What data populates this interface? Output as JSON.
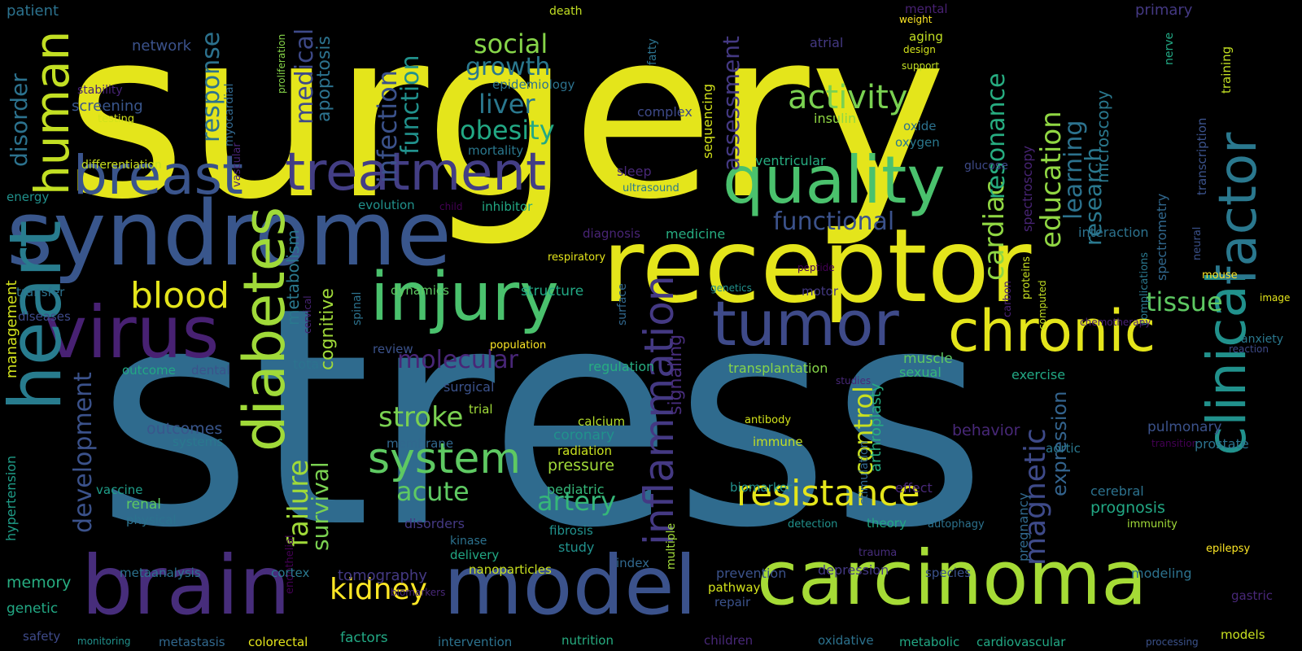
{
  "words": [
    {
      "text": "surgery",
      "color": "#e4e51b",
      "vertical": false
    },
    {
      "text": "stress",
      "color": "#2f6b8e",
      "vertical": false
    },
    {
      "text": "syndrome",
      "color": "#39568c",
      "vertical": false
    },
    {
      "text": "receptor",
      "color": "#e4e51b",
      "vertical": false
    },
    {
      "text": "model",
      "color": "#3b528b",
      "vertical": false
    },
    {
      "text": "carcinoma",
      "color": "#a5db36",
      "vertical": false
    },
    {
      "text": "brain",
      "color": "#472d7b",
      "vertical": false
    },
    {
      "text": "injury",
      "color": "#4ac16d",
      "vertical": false
    },
    {
      "text": "virus",
      "color": "#482173",
      "vertical": false
    },
    {
      "text": "quality",
      "color": "#4ac16d",
      "vertical": false
    },
    {
      "text": "tumor",
      "color": "#3e4a89",
      "vertical": false
    },
    {
      "text": "chronic",
      "color": "#e4e51b",
      "vertical": false
    },
    {
      "text": "breast",
      "color": "#3a548c",
      "vertical": false
    },
    {
      "text": "treatment",
      "color": "#433e85",
      "vertical": false
    },
    {
      "text": "heart",
      "color": "#287c8e",
      "vertical": true
    },
    {
      "text": "human",
      "color": "#c2df23",
      "vertical": true
    },
    {
      "text": "diabetes",
      "color": "#a0da39",
      "vertical": true
    },
    {
      "text": "clinical",
      "color": "#21918c",
      "vertical": true
    },
    {
      "text": "factor",
      "color": "#2a788e",
      "vertical": true
    },
    {
      "text": "inflammation",
      "color": "#443983",
      "vertical": true
    },
    {
      "text": "system",
      "color": "#5ec962",
      "vertical": false
    },
    {
      "text": "resistance",
      "color": "#e4e51b",
      "vertical": false
    },
    {
      "text": "blood",
      "color": "#e4e51b",
      "vertical": false
    },
    {
      "text": "activity",
      "color": "#7ad151",
      "vertical": false
    },
    {
      "text": "kidney",
      "color": "#fde725",
      "vertical": false
    },
    {
      "text": "stroke",
      "color": "#7ad151",
      "vertical": false
    },
    {
      "text": "acute",
      "color": "#5ec962",
      "vertical": false
    },
    {
      "text": "artery",
      "color": "#35b779",
      "vertical": false
    },
    {
      "text": "tissue",
      "color": "#5ec962",
      "vertical": false
    },
    {
      "text": "obesity",
      "color": "#22a884",
      "vertical": false
    },
    {
      "text": "liver",
      "color": "#2a788e",
      "vertical": false
    },
    {
      "text": "social",
      "color": "#86d549",
      "vertical": false
    },
    {
      "text": "growth",
      "color": "#2a788e",
      "vertical": false
    },
    {
      "text": "molecular",
      "color": "#482677",
      "vertical": false
    },
    {
      "text": "functional",
      "color": "#3b528b",
      "vertical": false
    },
    {
      "text": "function",
      "color": "#21918c",
      "vertical": true
    },
    {
      "text": "infection",
      "color": "#3b528b",
      "vertical": true
    },
    {
      "text": "medical",
      "color": "#3e4a89",
      "vertical": true
    },
    {
      "text": "response",
      "color": "#2c728e",
      "vertical": true
    },
    {
      "text": "development",
      "color": "#3b528b",
      "vertical": true
    },
    {
      "text": "failure",
      "color": "#a0da39",
      "vertical": true
    },
    {
      "text": "survival",
      "color": "#7ad151",
      "vertical": true
    },
    {
      "text": "control",
      "color": "#c8e020",
      "vertical": true
    },
    {
      "text": "magnetic",
      "color": "#3e4a89",
      "vertical": true
    },
    {
      "text": "cardiac",
      "color": "#90d743",
      "vertical": true
    },
    {
      "text": "resonance",
      "color": "#27ad81",
      "vertical": true
    },
    {
      "text": "education",
      "color": "#90d743",
      "vertical": true
    },
    {
      "text": "learning",
      "color": "#2c728e",
      "vertical": true
    },
    {
      "text": "research",
      "color": "#2a788e",
      "vertical": true
    },
    {
      "text": "assessment",
      "color": "#443983",
      "vertical": true
    },
    {
      "text": "disorder",
      "color": "#2c728e",
      "vertical": true
    },
    {
      "text": "expression",
      "color": "#33638d",
      "vertical": true
    },
    {
      "text": "apoptosis",
      "color": "#2c728e",
      "vertical": true
    },
    {
      "text": "signaling",
      "color": "#472d7b",
      "vertical": true
    },
    {
      "text": "cognitive",
      "color": "#a0da39",
      "vertical": true
    },
    {
      "text": "metabolism",
      "color": "#2a788e",
      "vertical": true
    },
    {
      "text": "management",
      "color": "#d2e21b",
      "vertical": true
    },
    {
      "text": "hypertension",
      "color": "#1f9e89",
      "vertical": true
    },
    {
      "text": "arthroplasty",
      "color": "#27ad81",
      "vertical": true
    },
    {
      "text": "microscopy",
      "color": "#2a788e",
      "vertical": true
    },
    {
      "text": "spectroscopy",
      "color": "#482475",
      "vertical": true
    },
    {
      "text": "sequencing",
      "color": "#d2e21b",
      "vertical": true
    },
    {
      "text": "stimulation",
      "color": "#31688e",
      "vertical": true
    },
    {
      "text": "pregnancy",
      "color": "#31688e",
      "vertical": true
    },
    {
      "text": "spectrometry",
      "color": "#31688e",
      "vertical": true
    },
    {
      "text": "transcription",
      "color": "#3b528b",
      "vertical": true
    },
    {
      "text": "training",
      "color": "#c2df23",
      "vertical": true
    },
    {
      "text": "nerve",
      "color": "#22a884",
      "vertical": true
    },
    {
      "text": "fatty",
      "color": "#2c728e",
      "vertical": true
    },
    {
      "text": "myocardial",
      "color": "#31688e",
      "vertical": true
    },
    {
      "text": "vascular",
      "color": "#482475",
      "vertical": true
    },
    {
      "text": "proliferation",
      "color": "#86d549",
      "vertical": true
    },
    {
      "text": "weight",
      "color": "#fde725",
      "vertical": false
    },
    {
      "text": "design",
      "color": "#d2e21b",
      "vertical": false
    },
    {
      "text": "support",
      "color": "#c2df23",
      "vertical": false
    },
    {
      "text": "cervical",
      "color": "#482475",
      "vertical": true
    },
    {
      "text": "spinal",
      "color": "#2c728e",
      "vertical": true
    },
    {
      "text": "surface",
      "color": "#31688e",
      "vertical": true
    },
    {
      "text": "multiple",
      "color": "#a0da39",
      "vertical": true
    },
    {
      "text": "carbon",
      "color": "#482173",
      "vertical": true
    },
    {
      "text": "proteins",
      "color": "#c8e020",
      "vertical": true
    },
    {
      "text": "computed",
      "color": "#c2df23",
      "vertical": true
    },
    {
      "text": "complications",
      "color": "#2a788e",
      "vertical": true
    },
    {
      "text": "neural",
      "color": "#3b528b",
      "vertical": true
    },
    {
      "text": "endothelial",
      "color": "#440154",
      "vertical": true
    },
    {
      "text": "patient",
      "color": "#2c728e",
      "vertical": false
    },
    {
      "text": "death",
      "color": "#c2df23",
      "vertical": false
    },
    {
      "text": "mental",
      "color": "#482173",
      "vertical": false
    },
    {
      "text": "primary",
      "color": "#443983",
      "vertical": false
    },
    {
      "text": "network",
      "color": "#3b528b",
      "vertical": false
    },
    {
      "text": "aging",
      "color": "#c2df23",
      "vertical": false
    },
    {
      "text": "atrial",
      "color": "#443983",
      "vertical": false
    },
    {
      "text": "stability",
      "color": "#482475",
      "vertical": false
    },
    {
      "text": "screening",
      "color": "#39568c",
      "vertical": false
    },
    {
      "text": "testing",
      "color": "#d2e21b",
      "vertical": false
    },
    {
      "text": "epidemiology",
      "color": "#2c728e",
      "vertical": false
    },
    {
      "text": "complex",
      "color": "#3e4a89",
      "vertical": false
    },
    {
      "text": "insulin",
      "color": "#90d743",
      "vertical": false
    },
    {
      "text": "oxide",
      "color": "#2c728e",
      "vertical": false
    },
    {
      "text": "oxygen",
      "color": "#2a788e",
      "vertical": false
    },
    {
      "text": "mortality",
      "color": "#2a788e",
      "vertical": false
    },
    {
      "text": "differentiation",
      "color": "#c8e020",
      "vertical": false
    },
    {
      "text": "ventricular",
      "color": "#27ad81",
      "vertical": false
    },
    {
      "text": "glucose",
      "color": "#3e4a89",
      "vertical": false
    },
    {
      "text": "sleep",
      "color": "#482878",
      "vertical": false
    },
    {
      "text": "ultrasound",
      "color": "#2a788e",
      "vertical": false
    },
    {
      "text": "energy",
      "color": "#21918c",
      "vertical": false
    },
    {
      "text": "evolution",
      "color": "#21918c",
      "vertical": false
    },
    {
      "text": "child",
      "color": "#440154",
      "vertical": false
    },
    {
      "text": "inhibitor",
      "color": "#22a884",
      "vertical": false
    },
    {
      "text": "diagnosis",
      "color": "#482475",
      "vertical": false
    },
    {
      "text": "medicine",
      "color": "#27ad81",
      "vertical": false
    },
    {
      "text": "interaction",
      "color": "#2c728e",
      "vertical": false
    },
    {
      "text": "respiratory",
      "color": "#e4e51b",
      "vertical": false
    },
    {
      "text": "peptide",
      "color": "#440154",
      "vertical": false
    },
    {
      "text": "transfer",
      "color": "#2c728e",
      "vertical": false
    },
    {
      "text": "dynamics",
      "color": "#5ec962",
      "vertical": false
    },
    {
      "text": "structure",
      "color": "#22a884",
      "vertical": false
    },
    {
      "text": "genetics",
      "color": "#21918c",
      "vertical": false
    },
    {
      "text": "motor",
      "color": "#443983",
      "vertical": false
    },
    {
      "text": "mouse",
      "color": "#fde725",
      "vertical": false
    },
    {
      "text": "image",
      "color": "#e4e51b",
      "vertical": false
    },
    {
      "text": "diseases",
      "color": "#3e4a89",
      "vertical": false
    },
    {
      "text": "review",
      "color": "#3b528b",
      "vertical": false
    },
    {
      "text": "population",
      "color": "#fde725",
      "vertical": false
    },
    {
      "text": "chemotherapy",
      "color": "#482173",
      "vertical": false
    },
    {
      "text": "anxiety",
      "color": "#2a788e",
      "vertical": false
    },
    {
      "text": "reaction",
      "color": "#3e4a89",
      "vertical": false
    },
    {
      "text": "total",
      "color": "#2c728e",
      "vertical": false
    },
    {
      "text": "outcome",
      "color": "#22a884",
      "vertical": false
    },
    {
      "text": "dental",
      "color": "#3b528b",
      "vertical": false
    },
    {
      "text": "regulation",
      "color": "#27ad81",
      "vertical": false
    },
    {
      "text": "transplantation",
      "color": "#86d549",
      "vertical": false
    },
    {
      "text": "muscle",
      "color": "#5ec962",
      "vertical": false
    },
    {
      "text": "sexual",
      "color": "#35b779",
      "vertical": false
    },
    {
      "text": "studies",
      "color": "#482878",
      "vertical": false
    },
    {
      "text": "exercise",
      "color": "#22a884",
      "vertical": false
    },
    {
      "text": "surgical",
      "color": "#3b528b",
      "vertical": false
    },
    {
      "text": "trial",
      "color": "#a0da39",
      "vertical": false
    },
    {
      "text": "calcium",
      "color": "#b5de2b",
      "vertical": false
    },
    {
      "text": "antibody",
      "color": "#d2e21b",
      "vertical": false
    },
    {
      "text": "behavior",
      "color": "#482878",
      "vertical": false
    },
    {
      "text": "pulmonary",
      "color": "#3b528b",
      "vertical": false
    },
    {
      "text": "outcomes",
      "color": "#39568c",
      "vertical": false
    },
    {
      "text": "coronary",
      "color": "#21918c",
      "vertical": false
    },
    {
      "text": "immune",
      "color": "#c2df23",
      "vertical": false
    },
    {
      "text": "transition",
      "color": "#440154",
      "vertical": false
    },
    {
      "text": "aortic",
      "color": "#2a788e",
      "vertical": false
    },
    {
      "text": "prostate",
      "color": "#2c728e",
      "vertical": false
    },
    {
      "text": "systems",
      "color": "#2a788e",
      "vertical": false
    },
    {
      "text": "membrane",
      "color": "#31688e",
      "vertical": false
    },
    {
      "text": "radiation",
      "color": "#c8e020",
      "vertical": false
    },
    {
      "text": "pressure",
      "color": "#a0da39",
      "vertical": false
    },
    {
      "text": "vaccine",
      "color": "#1f9e89",
      "vertical": false
    },
    {
      "text": "pediatric",
      "color": "#35b779",
      "vertical": false
    },
    {
      "text": "biomarker",
      "color": "#21918c",
      "vertical": false
    },
    {
      "text": "effect",
      "color": "#482878",
      "vertical": false
    },
    {
      "text": "cerebral",
      "color": "#2c728e",
      "vertical": false
    },
    {
      "text": "renal",
      "color": "#5ec962",
      "vertical": false
    },
    {
      "text": "physical",
      "color": "#2c728e",
      "vertical": false
    },
    {
      "text": "disorders",
      "color": "#443983",
      "vertical": false
    },
    {
      "text": "fibrosis",
      "color": "#21918c",
      "vertical": false
    },
    {
      "text": "detection",
      "color": "#21918c",
      "vertical": false
    },
    {
      "text": "theory",
      "color": "#22a884",
      "vertical": false
    },
    {
      "text": "autophagy",
      "color": "#2c728e",
      "vertical": false
    },
    {
      "text": "prognosis",
      "color": "#22a884",
      "vertical": false
    },
    {
      "text": "immunity",
      "color": "#a0da39",
      "vertical": false
    },
    {
      "text": "kinase",
      "color": "#2c728e",
      "vertical": false
    },
    {
      "text": "study",
      "color": "#21918c",
      "vertical": false
    },
    {
      "text": "delivery",
      "color": "#22a884",
      "vertical": false
    },
    {
      "text": "trauma",
      "color": "#472d7b",
      "vertical": false
    },
    {
      "text": "epilepsy",
      "color": "#fde725",
      "vertical": false
    },
    {
      "text": "memory",
      "color": "#27ad81",
      "vertical": false
    },
    {
      "text": "metaanalysis",
      "color": "#2c728e",
      "vertical": false
    },
    {
      "text": "cortex",
      "color": "#2a788e",
      "vertical": false
    },
    {
      "text": "tomography",
      "color": "#443983",
      "vertical": false
    },
    {
      "text": "nanoparticles",
      "color": "#c8e020",
      "vertical": false
    },
    {
      "text": "index",
      "color": "#31688e",
      "vertical": false
    },
    {
      "text": "prevention",
      "color": "#3b528b",
      "vertical": false
    },
    {
      "text": "depression",
      "color": "#443983",
      "vertical": false
    },
    {
      "text": "species",
      "color": "#3b528b",
      "vertical": false
    },
    {
      "text": "modeling",
      "color": "#2c728e",
      "vertical": false
    },
    {
      "text": "pathway",
      "color": "#d2e21b",
      "vertical": false
    },
    {
      "text": "repair",
      "color": "#3b528b",
      "vertical": false
    },
    {
      "text": "genetic",
      "color": "#22a884",
      "vertical": false
    },
    {
      "text": "biomarkers",
      "color": "#482878",
      "vertical": false
    },
    {
      "text": "gastric",
      "color": "#482878",
      "vertical": false
    },
    {
      "text": "models",
      "color": "#c8e020",
      "vertical": false
    },
    {
      "text": "safety",
      "color": "#3e4a89",
      "vertical": false
    },
    {
      "text": "monitoring",
      "color": "#21918c",
      "vertical": false
    },
    {
      "text": "metastasis",
      "color": "#31688e",
      "vertical": false
    },
    {
      "text": "colorectal",
      "color": "#e4e51b",
      "vertical": false
    },
    {
      "text": "factors",
      "color": "#22a884",
      "vertical": false
    },
    {
      "text": "intervention",
      "color": "#2c728e",
      "vertical": false
    },
    {
      "text": "nutrition",
      "color": "#27ad81",
      "vertical": false
    },
    {
      "text": "children",
      "color": "#482878",
      "vertical": false
    },
    {
      "text": "oxidative",
      "color": "#2c728e",
      "vertical": false
    },
    {
      "text": "metabolic",
      "color": "#22a884",
      "vertical": false
    },
    {
      "text": "cardiovascular",
      "color": "#22a884",
      "vertical": false
    },
    {
      "text": "processing",
      "color": "#3b528b",
      "vertical": false
    }
  ]
}
